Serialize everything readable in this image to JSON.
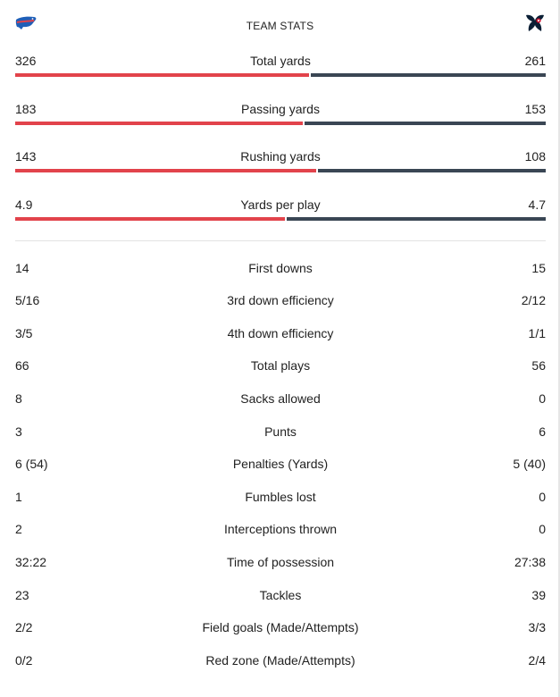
{
  "header": {
    "title": "TEAM STATS",
    "left_team_logo": "bills-logo",
    "right_team_logo": "texans-logo"
  },
  "colors": {
    "left_team": "#e2434b",
    "right_team": "#3a4654"
  },
  "bar_stats": [
    {
      "label": "Total yards",
      "left": "326",
      "right": "261",
      "left_value": 326,
      "right_value": 261
    },
    {
      "label": "Passing yards",
      "left": "183",
      "right": "153",
      "left_value": 183,
      "right_value": 153
    },
    {
      "label": "Rushing yards",
      "left": "143",
      "right": "108",
      "left_value": 143,
      "right_value": 108
    },
    {
      "label": "Yards per play",
      "left": "4.9",
      "right": "4.7",
      "left_value": 4.9,
      "right_value": 4.7
    }
  ],
  "stats": [
    {
      "label": "First downs",
      "left": "14",
      "right": "15"
    },
    {
      "label": "3rd down efficiency",
      "left": "5/16",
      "right": "2/12"
    },
    {
      "label": "4th down efficiency",
      "left": "3/5",
      "right": "1/1"
    },
    {
      "label": "Total plays",
      "left": "66",
      "right": "56"
    },
    {
      "label": "Sacks allowed",
      "left": "8",
      "right": "0"
    },
    {
      "label": "Punts",
      "left": "3",
      "right": "6"
    },
    {
      "label": "Penalties (Yards)",
      "left": "6 (54)",
      "right": "5 (40)"
    },
    {
      "label": "Fumbles lost",
      "left": "1",
      "right": "0"
    },
    {
      "label": "Interceptions thrown",
      "left": "2",
      "right": "0"
    },
    {
      "label": "Time of possession",
      "left": "32:22",
      "right": "27:38"
    },
    {
      "label": "Tackles",
      "left": "23",
      "right": "39"
    },
    {
      "label": "Field goals (Made/Attempts)",
      "left": "2/2",
      "right": "3/3"
    },
    {
      "label": "Red zone (Made/Attempts)",
      "left": "0/2",
      "right": "2/4"
    }
  ]
}
